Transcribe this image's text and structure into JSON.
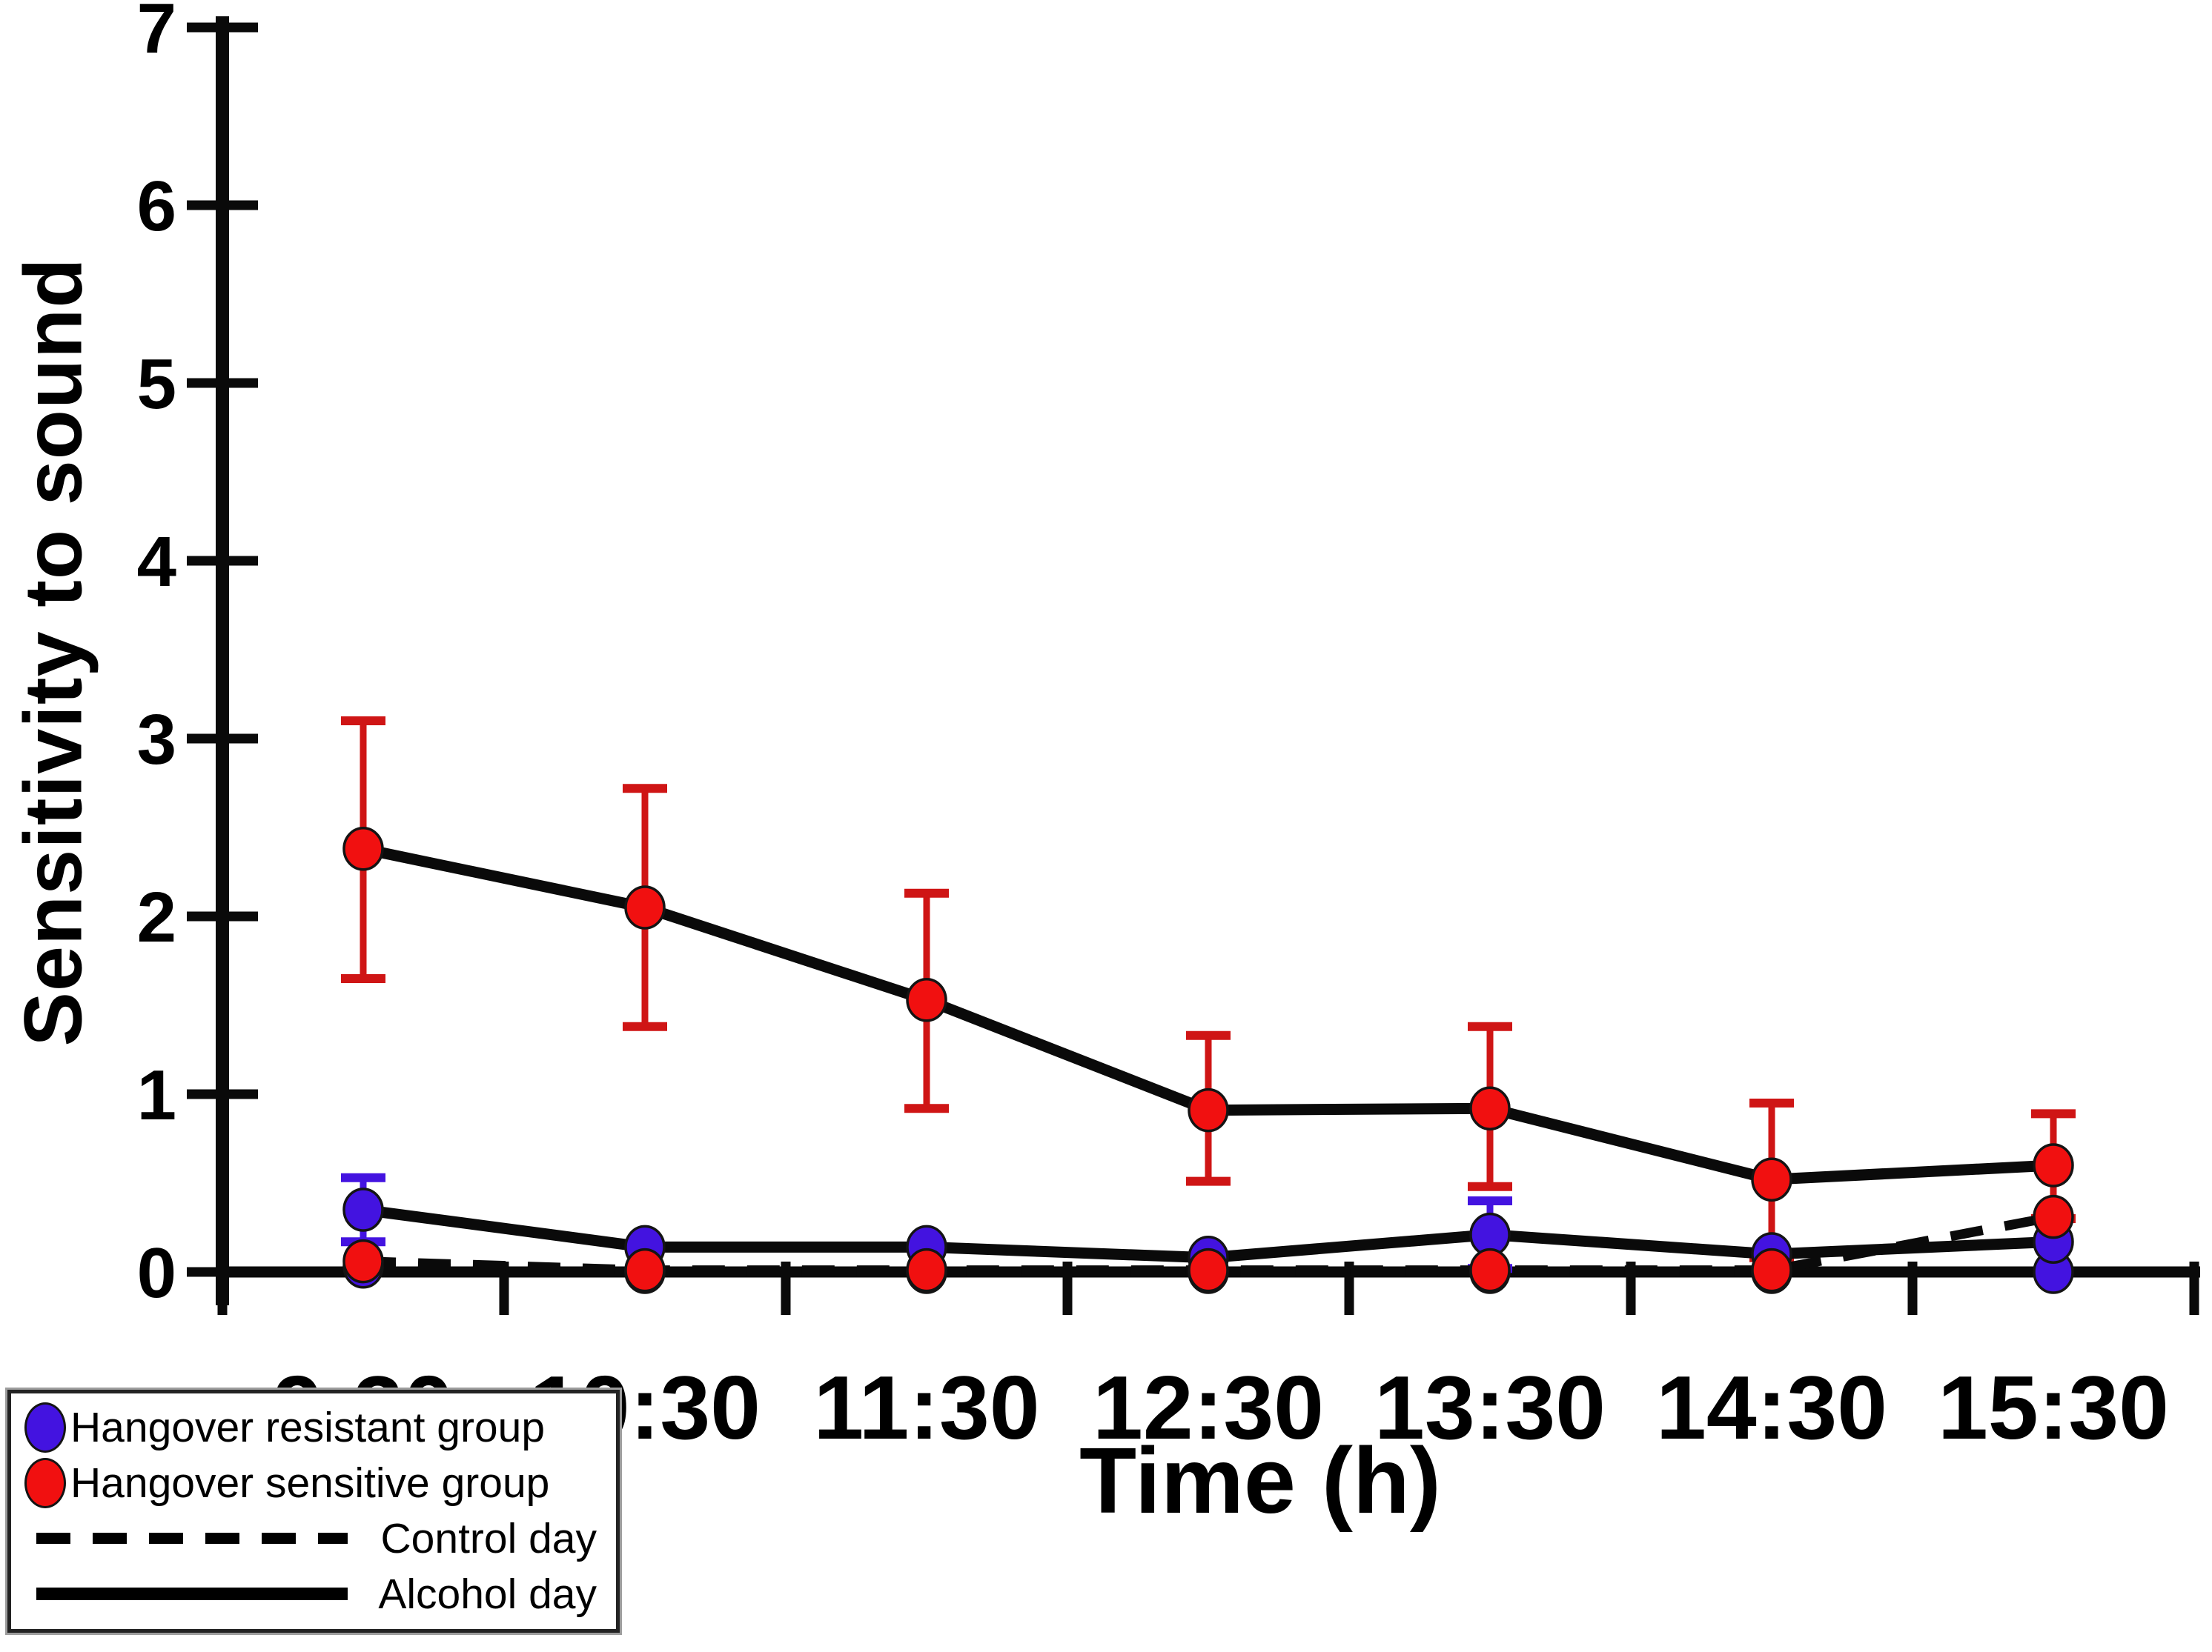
{
  "figure": {
    "background": "#ffffff",
    "y_axis_title": "Sensitivity to sound",
    "x_axis_title": "Time (h)",
    "colors": {
      "resistant_blue": "#4313e0",
      "sensitive_red": "#f11010",
      "error_bar_red": "#cf1515",
      "error_bar_blue": "#4313e0",
      "line_black": "#0a0a0a"
    }
  },
  "legend": {
    "items": [
      {
        "label": "Hangover resistant group",
        "swatch": "circle-marker",
        "color": "#4313e0"
      },
      {
        "label": "Hangover sensitive group",
        "swatch": "circle-marker",
        "color": "#f11010"
      },
      {
        "label": "Control day",
        "swatch": "dashed-line",
        "color": "#000000"
      },
      {
        "label": "Alcohol day",
        "swatch": "solid-line",
        "color": "#000000"
      }
    ]
  },
  "chart_data": {
    "type": "line",
    "title": "",
    "xlabel": "Time (h)",
    "ylabel": "Sensitivity to sound",
    "categories": [
      "9:30",
      "10:30",
      "11:30",
      "12:30",
      "13:30",
      "14:30",
      "15:30"
    ],
    "ylim": [
      0,
      7
    ],
    "yticks": [
      0,
      1,
      2,
      3,
      4,
      5,
      6,
      7
    ],
    "grid": false,
    "legend_position": "bottom-left",
    "series": [
      {
        "name": "Hangover resistant group - Control day",
        "group": "Hangover resistant group",
        "condition": "Control day",
        "marker_color": "#4313e0",
        "line_style": "dashed",
        "line_color": "#0a0a0a",
        "values": [
          0.03,
          0.0,
          0.0,
          0.0,
          0.0,
          0.0,
          0.0
        ],
        "error_plus": [
          0,
          0,
          0,
          0,
          0,
          0,
          0
        ],
        "error_minus": [
          0,
          0,
          0,
          0,
          0,
          0,
          0
        ]
      },
      {
        "name": "Hangover resistant group - Alcohol day",
        "group": "Hangover resistant group",
        "condition": "Alcohol day",
        "marker_color": "#4313e0",
        "line_style": "solid",
        "line_color": "#0a0a0a",
        "values": [
          0.35,
          0.14,
          0.14,
          0.08,
          0.21,
          0.1,
          0.17
        ],
        "error_plus": [
          0.18,
          0,
          0,
          0,
          0.19,
          0,
          0
        ],
        "error_minus": [
          0.18,
          0,
          0,
          0,
          0.19,
          0,
          0
        ]
      },
      {
        "name": "Hangover sensitive group - Control day",
        "group": "Hangover sensitive group",
        "condition": "Control day",
        "marker_color": "#f11010",
        "line_style": "dashed",
        "line_color": "#0a0a0a",
        "values": [
          0.06,
          0.01,
          0.01,
          0.01,
          0.01,
          0.01,
          0.31
        ],
        "error_plus": [
          0,
          0,
          0,
          0,
          0,
          0,
          0
        ],
        "error_minus": [
          0,
          0,
          0,
          0,
          0,
          0,
          0
        ]
      },
      {
        "name": "Hangover sensitive group - Alcohol day",
        "group": "Hangover sensitive group",
        "condition": "Alcohol day",
        "marker_color": "#f11010",
        "line_style": "solid",
        "line_color": "#0a0a0a",
        "values": [
          2.38,
          2.05,
          1.53,
          0.91,
          0.92,
          0.52,
          0.6
        ],
        "error_plus": [
          0.72,
          0.67,
          0.6,
          0.42,
          0.46,
          0.43,
          0.29
        ],
        "error_minus": [
          0.73,
          0.67,
          0.61,
          0.4,
          0.44,
          0.44,
          0.3
        ]
      }
    ]
  }
}
